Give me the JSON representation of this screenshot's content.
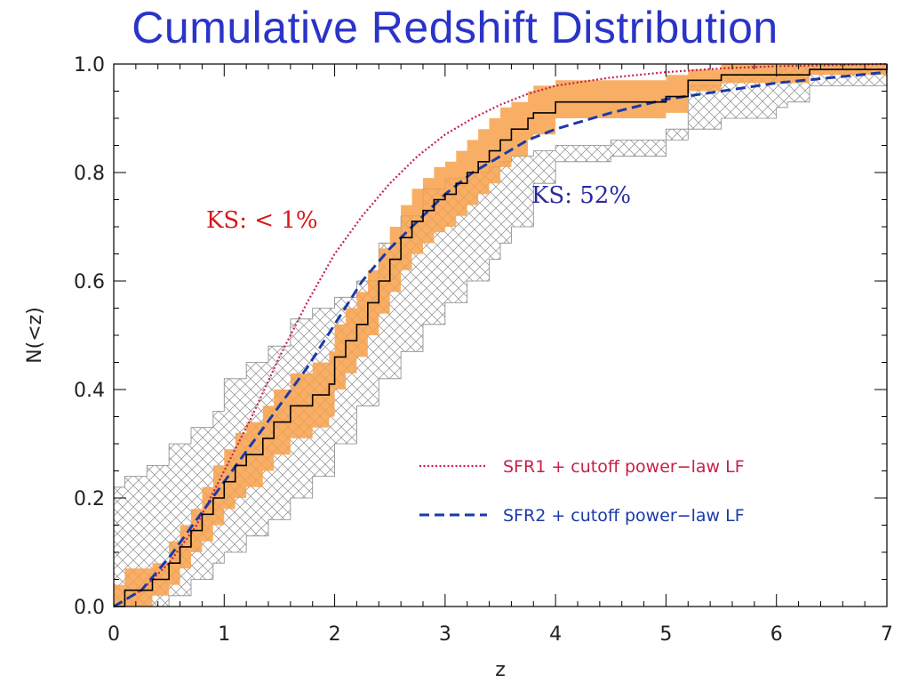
{
  "title": "Cumulative Redshift Distribution",
  "colors": {
    "sfr1": "#c8204a",
    "sfr2": "#1a3aa8",
    "band": "#f7a14a",
    "hatch": "#888888",
    "step": "#000000",
    "ks_left": "#d81818",
    "ks_right": "#2a2aa0"
  },
  "chart_data": {
    "type": "line",
    "xlabel": "z",
    "ylabel": "N(<z)",
    "xlim": [
      0,
      7
    ],
    "ylim": [
      0,
      1.0
    ],
    "xticks": [
      "0",
      "1",
      "2",
      "3",
      "4",
      "5",
      "6",
      "7"
    ],
    "yticks": [
      "0.0",
      "0.2",
      "0.4",
      "0.6",
      "0.8",
      "1.0"
    ],
    "grid": false,
    "legend_position": "bottom-right",
    "series": [
      {
        "name": "SFR1 + cutoff power−law LF",
        "style": "dotted",
        "x": [
          0,
          0.25,
          0.5,
          0.75,
          1.0,
          1.25,
          1.5,
          1.75,
          2.0,
          2.25,
          2.5,
          2.75,
          3.0,
          3.25,
          3.5,
          3.75,
          4.0,
          4.5,
          5.0,
          5.5,
          6.0,
          6.5,
          7.0
        ],
        "y": [
          0,
          0.03,
          0.08,
          0.15,
          0.25,
          0.35,
          0.46,
          0.56,
          0.65,
          0.72,
          0.78,
          0.83,
          0.87,
          0.9,
          0.925,
          0.945,
          0.96,
          0.975,
          0.985,
          0.992,
          0.996,
          0.998,
          1.0
        ]
      },
      {
        "name": "SFR2 + cutoff power−law LF",
        "style": "dashed",
        "x": [
          0,
          0.25,
          0.5,
          0.75,
          1.0,
          1.25,
          1.5,
          1.75,
          2.0,
          2.25,
          2.5,
          2.75,
          3.0,
          3.25,
          3.5,
          3.75,
          4.0,
          4.5,
          5.0,
          5.5,
          6.0,
          6.5,
          7.0
        ],
        "y": [
          0,
          0.03,
          0.09,
          0.16,
          0.23,
          0.3,
          0.37,
          0.44,
          0.52,
          0.6,
          0.66,
          0.71,
          0.76,
          0.8,
          0.83,
          0.86,
          0.88,
          0.91,
          0.935,
          0.95,
          0.965,
          0.975,
          0.985
        ]
      },
      {
        "name": "observed cumulative",
        "style": "step",
        "x": [
          0,
          0.1,
          0.35,
          0.5,
          0.6,
          0.7,
          0.8,
          0.9,
          1.0,
          1.1,
          1.2,
          1.35,
          1.45,
          1.6,
          1.8,
          1.95,
          2.0,
          2.1,
          2.2,
          2.3,
          2.4,
          2.5,
          2.6,
          2.7,
          2.8,
          2.9,
          3.0,
          3.1,
          3.2,
          3.3,
          3.4,
          3.5,
          3.6,
          3.75,
          3.8,
          4.0,
          5.0,
          5.2,
          5.5,
          6.3,
          7.0
        ],
        "y": [
          0,
          0.03,
          0.05,
          0.08,
          0.11,
          0.14,
          0.17,
          0.2,
          0.23,
          0.26,
          0.28,
          0.31,
          0.34,
          0.37,
          0.39,
          0.41,
          0.46,
          0.49,
          0.52,
          0.56,
          0.6,
          0.64,
          0.68,
          0.71,
          0.73,
          0.75,
          0.76,
          0.78,
          0.8,
          0.82,
          0.84,
          0.86,
          0.88,
          0.9,
          0.91,
          0.93,
          0.94,
          0.97,
          0.98,
          0.99,
          1.0
        ]
      },
      {
        "name": "orange band",
        "style": "band",
        "x": [
          0,
          0.1,
          0.35,
          0.5,
          0.6,
          0.7,
          0.8,
          0.9,
          1.0,
          1.1,
          1.2,
          1.35,
          1.45,
          1.6,
          1.8,
          1.95,
          2.0,
          2.1,
          2.2,
          2.3,
          2.4,
          2.5,
          2.6,
          2.7,
          2.8,
          2.9,
          3.0,
          3.1,
          3.2,
          3.3,
          3.4,
          3.5,
          3.6,
          3.75,
          3.8,
          4.0,
          5.0,
          5.2,
          5.5,
          6.3,
          7.0
        ],
        "low": [
          0,
          0.0,
          0.02,
          0.04,
          0.07,
          0.1,
          0.12,
          0.15,
          0.18,
          0.2,
          0.22,
          0.25,
          0.28,
          0.31,
          0.33,
          0.35,
          0.4,
          0.43,
          0.46,
          0.5,
          0.54,
          0.58,
          0.62,
          0.65,
          0.67,
          0.69,
          0.7,
          0.72,
          0.74,
          0.76,
          0.78,
          0.81,
          0.83,
          0.86,
          0.87,
          0.9,
          0.91,
          0.95,
          0.965,
          0.98,
          1.0
        ],
        "high": [
          0.04,
          0.07,
          0.08,
          0.12,
          0.15,
          0.18,
          0.22,
          0.26,
          0.29,
          0.32,
          0.34,
          0.37,
          0.4,
          0.43,
          0.45,
          0.47,
          0.52,
          0.55,
          0.58,
          0.62,
          0.66,
          0.7,
          0.74,
          0.77,
          0.79,
          0.81,
          0.82,
          0.84,
          0.86,
          0.88,
          0.9,
          0.92,
          0.93,
          0.95,
          0.96,
          0.97,
          0.98,
          0.99,
          1.0,
          1.0,
          1.0
        ]
      },
      {
        "name": "hatched band",
        "style": "hatch",
        "x": [
          0,
          0.1,
          0.3,
          0.5,
          0.7,
          0.9,
          1.0,
          1.2,
          1.4,
          1.6,
          1.8,
          2.0,
          2.2,
          2.4,
          2.6,
          2.8,
          3.0,
          3.2,
          3.4,
          3.5,
          3.6,
          3.8,
          4.0,
          4.5,
          5.0,
          5.2,
          5.5,
          6.0,
          6.1,
          6.3,
          7.0
        ],
        "low": [
          0,
          0.0,
          0.0,
          0.02,
          0.05,
          0.08,
          0.1,
          0.13,
          0.16,
          0.2,
          0.24,
          0.3,
          0.37,
          0.42,
          0.47,
          0.52,
          0.56,
          0.6,
          0.64,
          0.67,
          0.7,
          0.78,
          0.82,
          0.83,
          0.86,
          0.88,
          0.9,
          0.92,
          0.93,
          0.96,
          1.0
        ],
        "high": [
          0.22,
          0.24,
          0.26,
          0.3,
          0.33,
          0.36,
          0.42,
          0.45,
          0.48,
          0.53,
          0.55,
          0.57,
          0.6,
          0.67,
          0.72,
          0.77,
          0.79,
          0.8,
          0.81,
          0.82,
          0.83,
          0.84,
          0.85,
          0.86,
          0.88,
          0.96,
          0.98,
          0.99,
          1.0,
          1.0,
          1.0
        ]
      }
    ],
    "annotations": {
      "ks_left": "KS: < 1%",
      "ks_right": "KS: 52%"
    },
    "legend": [
      {
        "label": "SFR1 + cutoff power−law LF",
        "style": "dotted"
      },
      {
        "label": "SFR2 + cutoff power−law LF",
        "style": "dashed"
      }
    ]
  }
}
